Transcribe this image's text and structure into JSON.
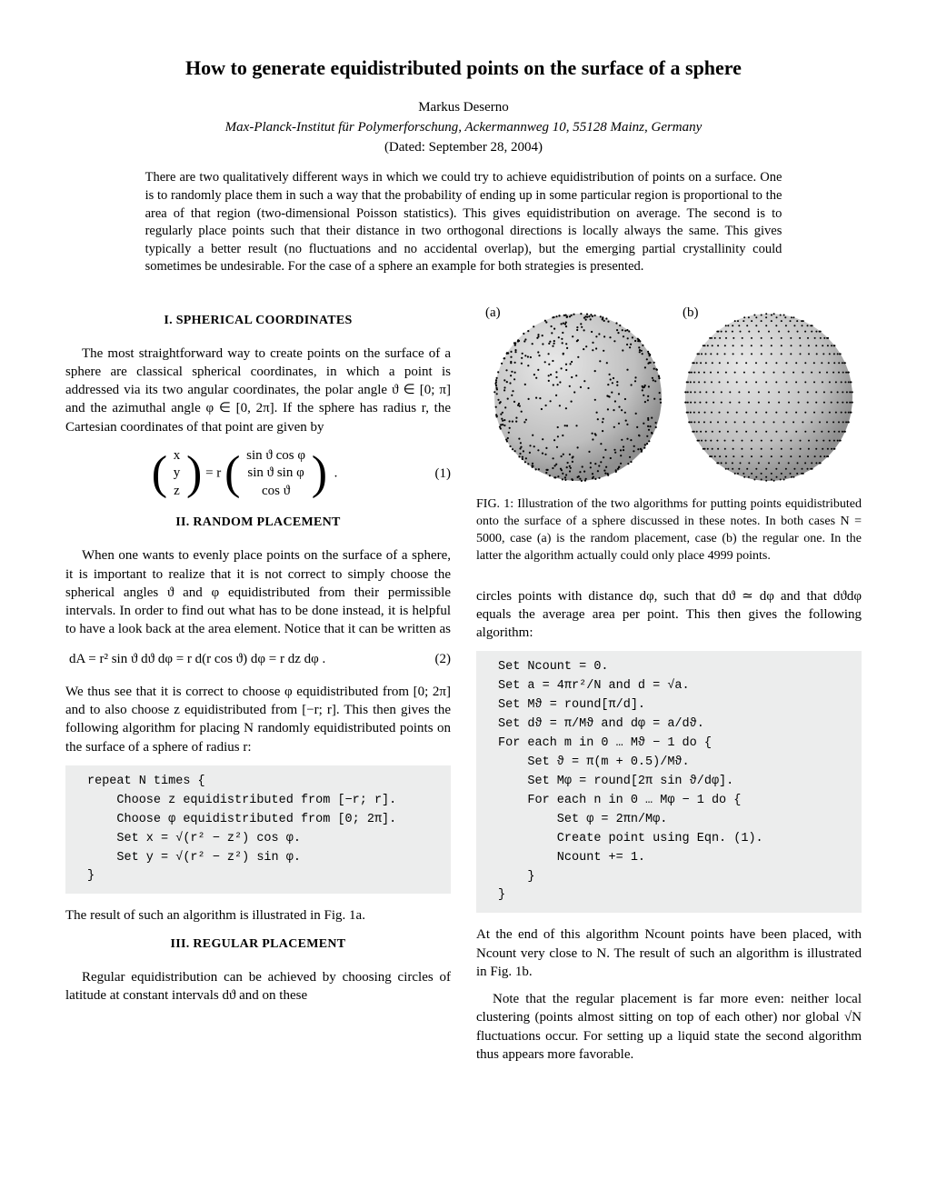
{
  "title": "How to generate equidistributed points on the surface of a sphere",
  "author": "Markus Deserno",
  "affiliation": "Max-Planck-Institut für Polymerforschung, Ackermannweg 10, 55128 Mainz, Germany",
  "date": "(Dated: September 28, 2004)",
  "abstract": "There are two qualitatively different ways in which we could try to achieve equidistribution of points on a surface. One is to randomly place them in such a way that the probability of ending up in some particular region is proportional to the area of that region (two-dimensional Poisson statistics). This gives equidistribution on average. The second is to regularly place points such that their distance in two orthogonal directions is locally always the same. This gives typically a better result (no fluctuations and no accidental overlap), but the emerging partial crystallinity could sometimes be undesirable. For the case of a sphere an example for both strategies is presented.",
  "sections": {
    "s1": "I.   SPHERICAL COORDINATES",
    "s2": "II.   RANDOM PLACEMENT",
    "s3": "III.   REGULAR PLACEMENT"
  },
  "left": {
    "p1": "The most straightforward way to create points on the surface of a sphere are classical spherical coordinates, in which a point is addressed via its two angular coordinates, the polar angle ϑ ∈ [0; π] and the azimuthal angle φ ∈ [0, 2π]. If the sphere has radius r, the Cartesian coordinates of that point are given by",
    "eq1": {
      "vec_lhs": [
        "x",
        "y",
        "z"
      ],
      "mid": " = r ",
      "vec_rhs": [
        "sin ϑ cos φ",
        "sin ϑ sin φ",
        "cos ϑ"
      ],
      "num": "(1)"
    },
    "p2": "When one wants to evenly place points on the surface of a sphere, it is important to realize that it is not correct to simply choose the spherical angles ϑ and φ equidistributed from their permissible intervals. In order to find out what has to be done instead, it is helpful to have a look back at the area element. Notice that it can be written as",
    "eq2": {
      "body": "dA = r² sin ϑ dϑ dφ = r d(r cos ϑ) dφ = r dz dφ .",
      "num": "(2)"
    },
    "p3": "We thus see that it is correct to choose φ equidistributed from [0; 2π] and to also choose z equidistributed from [−r; r]. This then gives the following algorithm for placing N randomly equidistributed points on the surface of a sphere of radius r:",
    "code1": "repeat N times {\n    Choose z equidistributed from [−r; r].\n    Choose φ equidistributed from [0; 2π].\n    Set x = √(r² − z²) cos φ.\n    Set y = √(r² − z²) sin φ.\n}",
    "p4": "The result of such an algorithm is illustrated in Fig. 1a.",
    "p5": "Regular equidistribution can be achieved by choosing circles of latitude at constant intervals dϑ and on these"
  },
  "right": {
    "fig": {
      "label_a": "(a)",
      "label_b": "(b)",
      "N_points": 5000,
      "sphere_color": "#bfbfbf",
      "point_color": "#000000",
      "background": "#ffffff"
    },
    "fig_caption": "FIG. 1: Illustration of the two algorithms for putting points equidistributed onto the surface of a sphere discussed in these notes. In both cases N = 5000, case (a) is the random placement, case (b) the regular one. In the latter the algorithm actually could only place 4999 points.",
    "p1": "circles points with distance dφ, such that dϑ ≃ dφ and that dϑdφ equals the average area per point. This then gives the following algorithm:",
    "code2": "Set Ncount = 0.\nSet a = 4πr²/N and d = √a.\nSet Mϑ = round[π/d].\nSet dϑ = π/Mϑ and dφ = a/dϑ.\nFor each m in 0 … Mϑ − 1 do {\n    Set ϑ = π(m + 0.5)/Mϑ.\n    Set Mφ = round[2π sin ϑ/dφ].\n    For each n in 0 … Mφ − 1 do {\n        Set φ = 2πn/Mφ.\n        Create point using Eqn. (1).\n        Ncount += 1.\n    }\n}",
    "p2": "At the end of this algorithm Ncount points have been placed, with Ncount very close to N. The result of such an algorithm is illustrated in Fig. 1b.",
    "p3": "Note that the regular placement is far more even: neither local clustering (points almost sitting on top of each other) nor global √N fluctuations occur. For setting up a liquid state the second algorithm thus appears more favorable."
  }
}
